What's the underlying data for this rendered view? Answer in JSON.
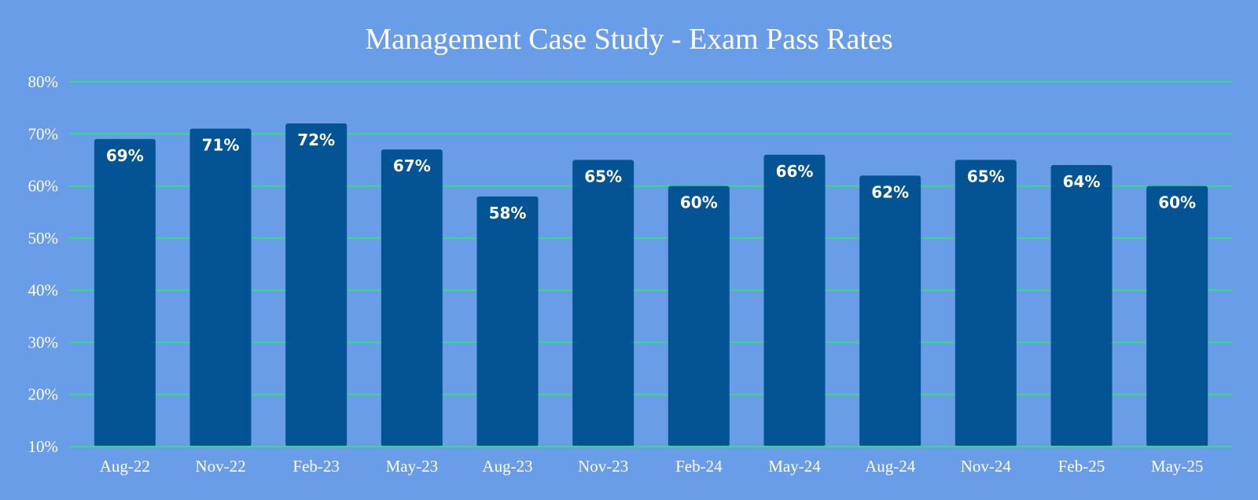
{
  "colors": {
    "background": "#6a9de8",
    "bar": "#045394",
    "gridline": "#2fe07a",
    "text": "#ffffff"
  },
  "chart_data": {
    "type": "bar",
    "title": "Management Case Study - Exam Pass Rates",
    "xlabel": "",
    "ylabel": "",
    "categories": [
      "Aug-22",
      "Nov-22",
      "Feb-23",
      "May-23",
      "Aug-23",
      "Nov-23",
      "Feb-24",
      "May-24",
      "Aug-24",
      "Nov-24",
      "Feb-25",
      "May-25"
    ],
    "values": [
      69,
      71,
      72,
      67,
      58,
      65,
      60,
      66,
      62,
      65,
      64,
      60
    ],
    "data_labels": [
      "69%",
      "71%",
      "72%",
      "67%",
      "58%",
      "65%",
      "60%",
      "66%",
      "62%",
      "65%",
      "64%",
      "60%"
    ],
    "ylim": [
      10,
      80
    ],
    "yticks": [
      10,
      20,
      30,
      40,
      50,
      60,
      70,
      80
    ],
    "ytick_labels": [
      "10%",
      "20%",
      "30%",
      "40%",
      "50%",
      "60%",
      "70%",
      "80%"
    ],
    "grid": true,
    "legend": "none"
  }
}
